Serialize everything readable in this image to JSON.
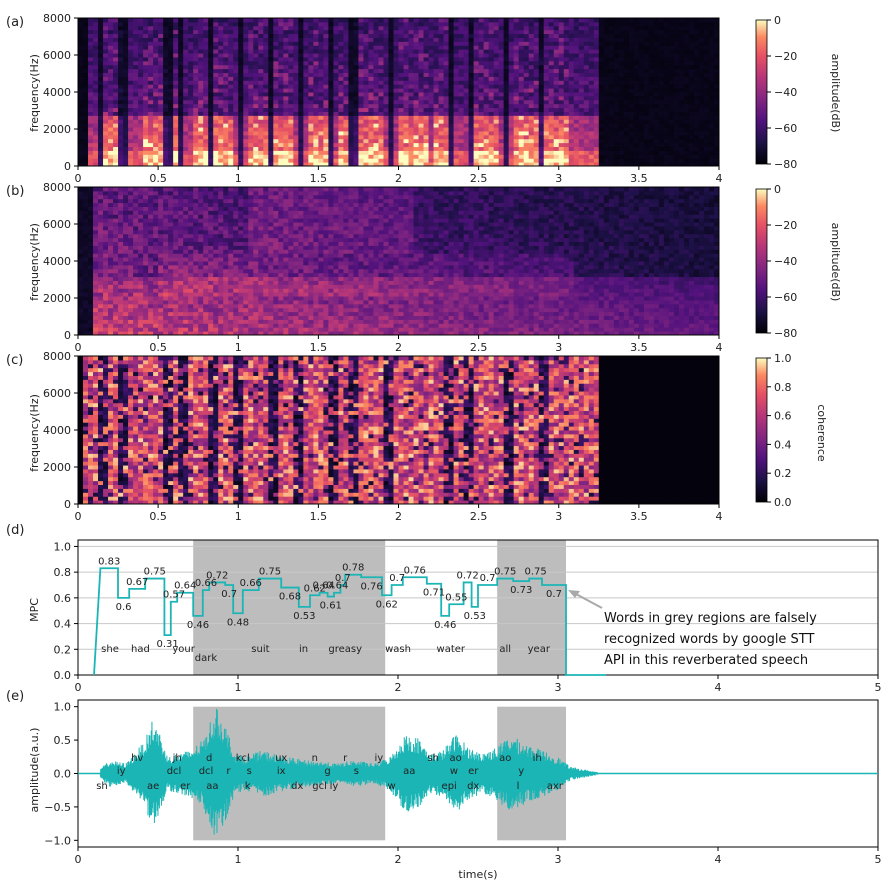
{
  "chart_data": [
    {
      "type": "heatmap",
      "panel_label": "(a)",
      "ylabel": "frequency(Hz)",
      "x_ticks": [
        "0",
        "0.5",
        "1",
        "1.5",
        "2",
        "2.5",
        "3",
        "3.5",
        "4"
      ],
      "y_ticks": [
        "0",
        "2000",
        "4000",
        "6000",
        "8000"
      ],
      "xlim": [
        0,
        4
      ],
      "ylim": [
        0,
        8000
      ],
      "colorbar": {
        "label": "amplitude(dB)",
        "ticks": [
          "0",
          "−20",
          "−40",
          "−60",
          "−80"
        ],
        "range": [
          -80,
          0
        ]
      },
      "speech_end_s": 3.25
    },
    {
      "type": "heatmap",
      "panel_label": "(b)",
      "ylabel": "frequency(Hz)",
      "x_ticks": [
        "0",
        "0.5",
        "1",
        "1.5",
        "2",
        "2.5",
        "3",
        "3.5",
        "4"
      ],
      "y_ticks": [
        "0",
        "2000",
        "4000",
        "6000",
        "8000"
      ],
      "xlim": [
        0,
        4
      ],
      "ylim": [
        0,
        8000
      ],
      "colorbar": {
        "label": "amplitude(dB)",
        "ticks": [
          "0",
          "−20",
          "−40",
          "−60",
          "−80"
        ],
        "range": [
          -80,
          0
        ]
      },
      "speech_end_s": 4.0
    },
    {
      "type": "heatmap",
      "panel_label": "(c)",
      "ylabel": "frequency(Hz)",
      "x_ticks": [
        "0",
        "0.5",
        "1",
        "1.5",
        "2",
        "2.5",
        "3",
        "3.5",
        "4"
      ],
      "y_ticks": [
        "0",
        "2000",
        "4000",
        "6000",
        "8000"
      ],
      "xlim": [
        0,
        4
      ],
      "ylim": [
        0,
        8000
      ],
      "colorbar": {
        "label": "coherence",
        "ticks": [
          "1.0",
          "0.8",
          "0.6",
          "0.4",
          "0.2",
          "0.0"
        ],
        "range": [
          0,
          1
        ]
      },
      "speech_end_s": 3.25
    },
    {
      "type": "line",
      "panel_label": "(d)",
      "ylabel": "MPC",
      "x_ticks": [
        "0",
        "1",
        "2",
        "3",
        "4",
        "5"
      ],
      "y_ticks": [
        "0.0",
        "0.2",
        "0.4",
        "0.6",
        "0.8",
        "1.0"
      ],
      "xlim": [
        0,
        5
      ],
      "ylim": [
        0,
        1.05
      ],
      "grid": true,
      "grey_regions": [
        [
          0.72,
          1.92
        ],
        [
          2.62,
          3.05
        ]
      ],
      "steps": [
        {
          "t0": 0.14,
          "t1": 0.25,
          "v": 0.83,
          "label": "0.83"
        },
        {
          "t0": 0.25,
          "t1": 0.32,
          "v": 0.6,
          "label": "0.6"
        },
        {
          "t0": 0.32,
          "t1": 0.42,
          "v": 0.67,
          "label": "0.67"
        },
        {
          "t0": 0.42,
          "t1": 0.54,
          "v": 0.75,
          "label": "0.75"
        },
        {
          "t0": 0.54,
          "t1": 0.58,
          "v": 0.31,
          "label": "0.31"
        },
        {
          "t0": 0.58,
          "t1": 0.62,
          "v": 0.57,
          "label": "0.57"
        },
        {
          "t0": 0.62,
          "t1": 0.72,
          "v": 0.64,
          "label": "0.64"
        },
        {
          "t0": 0.72,
          "t1": 0.78,
          "v": 0.46,
          "label": "0.46"
        },
        {
          "t0": 0.78,
          "t1": 0.82,
          "v": 0.66,
          "label": "0.66"
        },
        {
          "t0": 0.82,
          "t1": 0.92,
          "v": 0.72,
          "label": "0.72"
        },
        {
          "t0": 0.92,
          "t1": 0.97,
          "v": 0.7,
          "label": "0.7"
        },
        {
          "t0": 0.97,
          "t1": 1.03,
          "v": 0.48,
          "label": "0.48"
        },
        {
          "t0": 1.03,
          "t1": 1.13,
          "v": 0.66,
          "label": "0.66"
        },
        {
          "t0": 1.13,
          "t1": 1.27,
          "v": 0.75,
          "label": "0.75"
        },
        {
          "t0": 1.27,
          "t1": 1.38,
          "v": 0.68,
          "label": "0.68"
        },
        {
          "t0": 1.38,
          "t1": 1.45,
          "v": 0.53,
          "label": "0.53"
        },
        {
          "t0": 1.45,
          "t1": 1.51,
          "v": 0.62,
          "label": "0.62"
        },
        {
          "t0": 1.51,
          "t1": 1.56,
          "v": 0.64,
          "label": "0.64"
        },
        {
          "t0": 1.56,
          "t1": 1.6,
          "v": 0.61,
          "label": "0.61"
        },
        {
          "t0": 1.6,
          "t1": 1.64,
          "v": 0.64,
          "label": "0.64"
        },
        {
          "t0": 1.64,
          "t1": 1.67,
          "v": 0.7,
          "label": "0.7"
        },
        {
          "t0": 1.67,
          "t1": 1.77,
          "v": 0.78,
          "label": "0.78"
        },
        {
          "t0": 1.77,
          "t1": 1.9,
          "v": 0.76,
          "label": "0.76"
        },
        {
          "t0": 1.9,
          "t1": 1.96,
          "v": 0.62,
          "label": "0.62"
        },
        {
          "t0": 1.96,
          "t1": 2.03,
          "v": 0.7,
          "label": "0.7"
        },
        {
          "t0": 2.03,
          "t1": 2.18,
          "v": 0.76,
          "label": "0.76"
        },
        {
          "t0": 2.18,
          "t1": 2.27,
          "v": 0.71,
          "label": "0.71"
        },
        {
          "t0": 2.27,
          "t1": 2.32,
          "v": 0.46,
          "label": "0.46"
        },
        {
          "t0": 2.32,
          "t1": 2.41,
          "v": 0.55,
          "label": "0.55"
        },
        {
          "t0": 2.41,
          "t1": 2.46,
          "v": 0.72,
          "label": "0.72"
        },
        {
          "t0": 2.46,
          "t1": 2.5,
          "v": 0.53,
          "label": "0.53"
        },
        {
          "t0": 2.5,
          "t1": 2.62,
          "v": 0.7,
          "label": "0.7"
        },
        {
          "t0": 2.62,
          "t1": 2.72,
          "v": 0.75,
          "label": "0.75"
        },
        {
          "t0": 2.72,
          "t1": 2.82,
          "v": 0.73,
          "label": "0.73"
        },
        {
          "t0": 2.82,
          "t1": 2.9,
          "v": 0.75,
          "label": "0.75"
        },
        {
          "t0": 2.9,
          "t1": 3.05,
          "v": 0.7,
          "label": "0.7"
        }
      ],
      "words": [
        {
          "t": 0.2,
          "text": "she",
          "row": 0
        },
        {
          "t": 0.39,
          "text": "had",
          "row": 0
        },
        {
          "t": 0.66,
          "text": "your",
          "row": 0
        },
        {
          "t": 0.8,
          "text": "dark",
          "row": 1
        },
        {
          "t": 1.14,
          "text": "suit",
          "row": 0
        },
        {
          "t": 1.41,
          "text": "in",
          "row": 0
        },
        {
          "t": 1.67,
          "text": "greasy",
          "row": 0
        },
        {
          "t": 2.0,
          "text": "wash",
          "row": 0
        },
        {
          "t": 2.33,
          "text": "water",
          "row": 0
        },
        {
          "t": 2.67,
          "text": "all",
          "row": 0
        },
        {
          "t": 2.88,
          "text": "year",
          "row": 0
        }
      ],
      "annotation": [
        "Words in grey regions are falsely",
        "recognized words by google STT",
        "API in this reverberated speech"
      ]
    },
    {
      "type": "line",
      "panel_label": "(e)",
      "ylabel": "amplitude(a.u.)",
      "xlabel": "time(s)",
      "x_ticks": [
        "0",
        "1",
        "2",
        "3",
        "4",
        "5"
      ],
      "y_ticks": [
        "−1.0",
        "−0.5",
        "0.0",
        "0.5",
        "1.0"
      ],
      "xlim": [
        0,
        5
      ],
      "ylim": [
        -1.1,
        1.1
      ],
      "grey_regions": [
        [
          0.72,
          1.92
        ],
        [
          2.62,
          3.05
        ]
      ],
      "waveform_envelope": [
        {
          "t": 0.14,
          "a": 0.08
        },
        {
          "t": 0.2,
          "a": 0.2
        },
        {
          "t": 0.3,
          "a": 0.15
        },
        {
          "t": 0.42,
          "a": 0.5
        },
        {
          "t": 0.46,
          "a": 0.8
        },
        {
          "t": 0.5,
          "a": 0.7
        },
        {
          "t": 0.56,
          "a": 0.25
        },
        {
          "t": 0.62,
          "a": 0.3
        },
        {
          "t": 0.7,
          "a": 0.35
        },
        {
          "t": 0.78,
          "a": 0.5
        },
        {
          "t": 0.86,
          "a": 1.0
        },
        {
          "t": 0.92,
          "a": 0.75
        },
        {
          "t": 0.98,
          "a": 0.3
        },
        {
          "t": 1.05,
          "a": 0.25
        },
        {
          "t": 1.15,
          "a": 0.35
        },
        {
          "t": 1.3,
          "a": 0.25
        },
        {
          "t": 1.42,
          "a": 0.2
        },
        {
          "t": 1.52,
          "a": 0.18
        },
        {
          "t": 1.62,
          "a": 0.15
        },
        {
          "t": 1.72,
          "a": 0.2
        },
        {
          "t": 1.85,
          "a": 0.15
        },
        {
          "t": 1.95,
          "a": 0.25
        },
        {
          "t": 2.05,
          "a": 0.6
        },
        {
          "t": 2.12,
          "a": 0.55
        },
        {
          "t": 2.2,
          "a": 0.3
        },
        {
          "t": 2.28,
          "a": 0.35
        },
        {
          "t": 2.36,
          "a": 0.6
        },
        {
          "t": 2.44,
          "a": 0.4
        },
        {
          "t": 2.52,
          "a": 0.3
        },
        {
          "t": 2.62,
          "a": 0.4
        },
        {
          "t": 2.7,
          "a": 0.58
        },
        {
          "t": 2.8,
          "a": 0.45
        },
        {
          "t": 2.9,
          "a": 0.35
        },
        {
          "t": 3.0,
          "a": 0.25
        },
        {
          "t": 3.08,
          "a": 0.1
        },
        {
          "t": 3.25,
          "a": 0.02
        }
      ],
      "phonemes": [
        {
          "t": 0.15,
          "text": "sh",
          "row": 2
        },
        {
          "t": 0.27,
          "text": "iy",
          "row": 1
        },
        {
          "t": 0.37,
          "text": "hv",
          "row": 0
        },
        {
          "t": 0.47,
          "text": "ae",
          "row": 2
        },
        {
          "t": 0.62,
          "text": "jh",
          "row": 0
        },
        {
          "t": 0.6,
          "text": "dcl",
          "row": 1
        },
        {
          "t": 0.67,
          "text": "er",
          "row": 2
        },
        {
          "t": 0.82,
          "text": "d",
          "row": 0
        },
        {
          "t": 0.8,
          "text": "dcl",
          "row": 1
        },
        {
          "t": 0.84,
          "text": "aa",
          "row": 2
        },
        {
          "t": 0.94,
          "text": "r",
          "row": 1
        },
        {
          "t": 1.03,
          "text": "kcl",
          "row": 0
        },
        {
          "t": 1.07,
          "text": "s",
          "row": 1
        },
        {
          "t": 1.06,
          "text": "k",
          "row": 2
        },
        {
          "t": 1.27,
          "text": "ux",
          "row": 0
        },
        {
          "t": 1.27,
          "text": "ix",
          "row": 1
        },
        {
          "t": 1.37,
          "text": "dx",
          "row": 2
        },
        {
          "t": 1.48,
          "text": "n",
          "row": 0
        },
        {
          "t": 1.56,
          "text": "g",
          "row": 1
        },
        {
          "t": 1.51,
          "text": "gcl",
          "row": 2
        },
        {
          "t": 1.6,
          "text": "iy",
          "row": 2
        },
        {
          "t": 1.67,
          "text": "r",
          "row": 0
        },
        {
          "t": 1.74,
          "text": "s",
          "row": 1
        },
        {
          "t": 1.88,
          "text": "iy",
          "row": 0
        },
        {
          "t": 1.96,
          "text": "w",
          "row": 2
        },
        {
          "t": 2.07,
          "text": "aa",
          "row": 1
        },
        {
          "t": 2.22,
          "text": "sh",
          "row": 0
        },
        {
          "t": 2.36,
          "text": "ao",
          "row": 0
        },
        {
          "t": 2.35,
          "text": "w",
          "row": 1
        },
        {
          "t": 2.32,
          "text": "epi",
          "row": 2
        },
        {
          "t": 2.47,
          "text": "er",
          "row": 1
        },
        {
          "t": 2.47,
          "text": "dx",
          "row": 2
        },
        {
          "t": 2.67,
          "text": "ao",
          "row": 0
        },
        {
          "t": 2.77,
          "text": "y",
          "row": 1
        },
        {
          "t": 2.75,
          "text": "l",
          "row": 2
        },
        {
          "t": 2.87,
          "text": "ih",
          "row": 0
        },
        {
          "t": 2.98,
          "text": "axr",
          "row": 2
        }
      ]
    }
  ]
}
